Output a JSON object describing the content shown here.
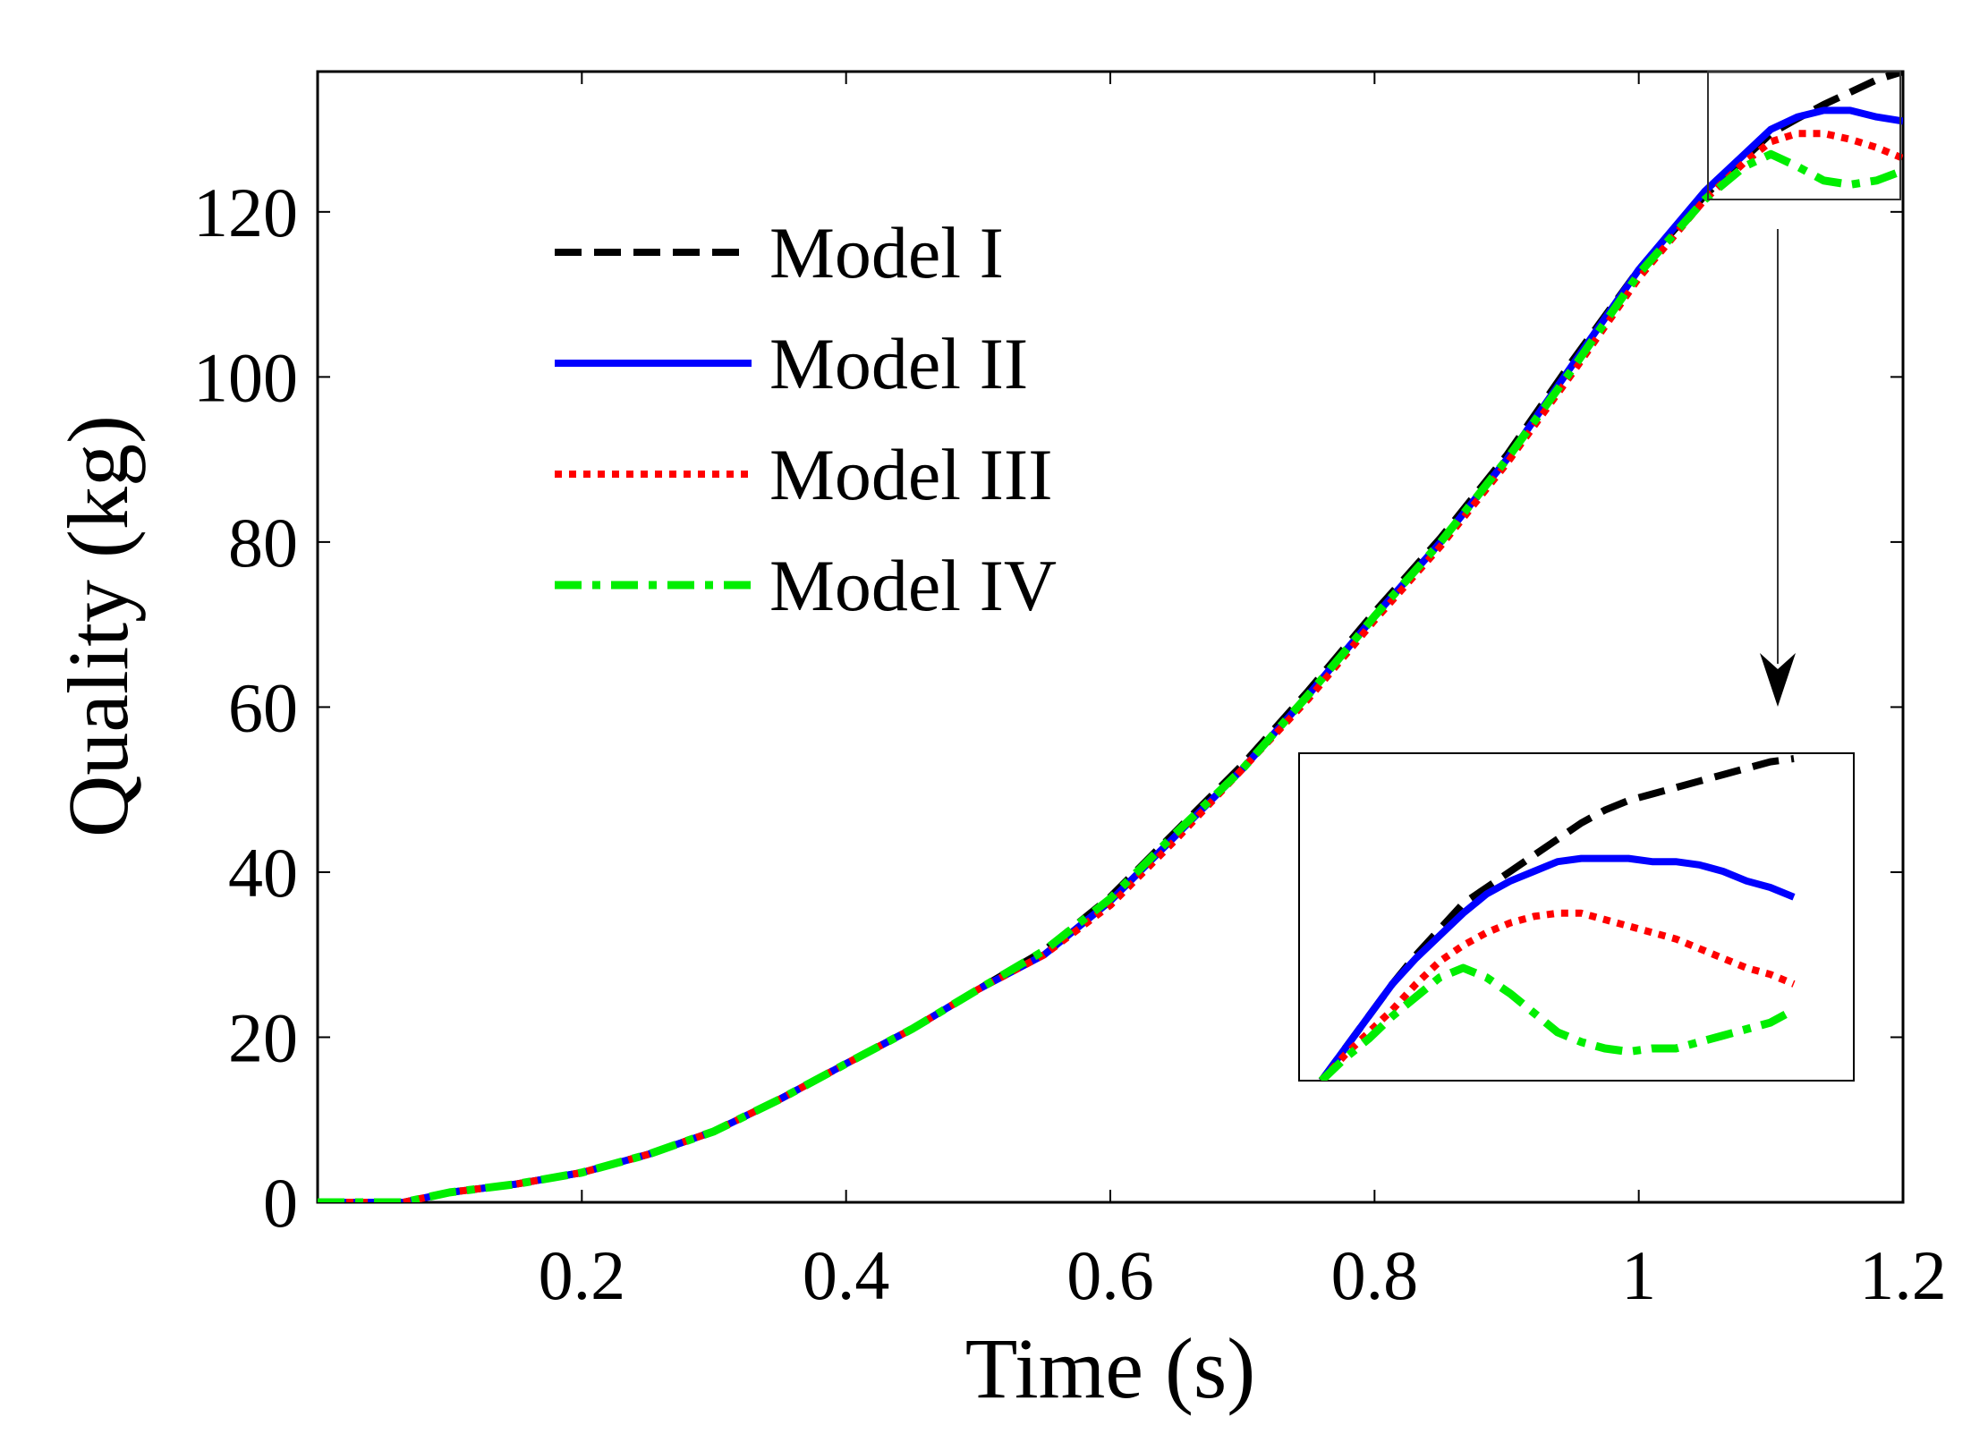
{
  "chart_data": {
    "type": "line",
    "title": "",
    "xlabel": "Time (s)",
    "ylabel": "Quality (kg)",
    "xlim": [
      0,
      1.2
    ],
    "ylim": [
      0,
      137
    ],
    "xticks": [
      0.2,
      0.4,
      0.6,
      0.8,
      1,
      1.2
    ],
    "xtick_labels": [
      "0.2",
      "0.4",
      "0.6",
      "0.8",
      "1",
      "1.2"
    ],
    "yticks": [
      0,
      20,
      40,
      60,
      80,
      100,
      120
    ],
    "ytick_labels": [
      "0",
      "20",
      "40",
      "60",
      "80",
      "100",
      "120"
    ],
    "grid": false,
    "legend_position": "top-left",
    "colors": {
      "model_1": "#000000",
      "model_2": "#0000ff",
      "model_3": "#ff0000",
      "model_4": "#00ee00"
    },
    "series": [
      {
        "name": "Model I",
        "style": "dashed",
        "x": [
          0,
          0.02,
          0.04,
          0.065,
          0.1,
          0.15,
          0.2,
          0.25,
          0.3,
          0.35,
          0.4,
          0.45,
          0.5,
          0.55,
          0.6,
          0.65,
          0.7,
          0.75,
          0.8,
          0.85,
          0.9,
          0.95,
          1.0,
          1.05,
          1.08,
          1.1,
          1.12,
          1.14,
          1.16,
          1.18,
          1.2
        ],
        "y": [
          0,
          0,
          0,
          0,
          1.2,
          2.2,
          3.6,
          5.8,
          8.6,
          12.5,
          16.8,
          21.0,
          25.8,
          30.5,
          37.0,
          45.0,
          53.0,
          62.0,
          71.5,
          80.5,
          90.5,
          102.0,
          113.0,
          122.0,
          126.5,
          129.5,
          131.3,
          133.0,
          134.5,
          136.0,
          137.0
        ]
      },
      {
        "name": "Model II",
        "style": "solid",
        "x": [
          0,
          0.02,
          0.04,
          0.065,
          0.1,
          0.15,
          0.2,
          0.25,
          0.3,
          0.35,
          0.4,
          0.45,
          0.5,
          0.55,
          0.6,
          0.65,
          0.7,
          0.75,
          0.8,
          0.85,
          0.9,
          0.95,
          1.0,
          1.05,
          1.08,
          1.1,
          1.12,
          1.14,
          1.16,
          1.18,
          1.2
        ],
        "y": [
          0,
          0,
          0,
          0,
          1.2,
          2.2,
          3.6,
          5.8,
          8.6,
          12.5,
          16.8,
          21.0,
          25.8,
          30.0,
          36.5,
          44.5,
          52.5,
          61.5,
          71.0,
          80.0,
          90.0,
          101.5,
          113.0,
          122.5,
          127.0,
          130.0,
          131.5,
          132.3,
          132.3,
          131.5,
          131.0
        ]
      },
      {
        "name": "Model III",
        "style": "dotted",
        "x": [
          0,
          0.02,
          0.04,
          0.065,
          0.1,
          0.15,
          0.2,
          0.25,
          0.3,
          0.35,
          0.4,
          0.45,
          0.5,
          0.55,
          0.6,
          0.65,
          0.7,
          0.75,
          0.8,
          0.85,
          0.9,
          0.95,
          1.0,
          1.05,
          1.08,
          1.1,
          1.12,
          1.14,
          1.16,
          1.18,
          1.2
        ],
        "y": [
          0,
          0,
          0,
          0,
          1.2,
          2.2,
          3.6,
          5.8,
          8.6,
          12.5,
          16.8,
          21.0,
          25.8,
          30.0,
          36.0,
          44.0,
          52.5,
          61.0,
          70.5,
          79.5,
          89.5,
          100.5,
          112.0,
          121.5,
          126.0,
          128.5,
          129.5,
          129.5,
          128.8,
          127.8,
          126.5
        ]
      },
      {
        "name": "Model IV",
        "style": "dashdot",
        "x": [
          0,
          0.02,
          0.04,
          0.065,
          0.1,
          0.15,
          0.2,
          0.25,
          0.3,
          0.35,
          0.4,
          0.45,
          0.5,
          0.55,
          0.6,
          0.65,
          0.7,
          0.75,
          0.8,
          0.85,
          0.9,
          0.95,
          1.0,
          1.05,
          1.08,
          1.1,
          1.12,
          1.14,
          1.16,
          1.18,
          1.2
        ],
        "y": [
          0,
          0,
          0,
          0,
          1.2,
          2.2,
          3.6,
          5.8,
          8.6,
          12.5,
          16.8,
          21.0,
          25.8,
          30.5,
          36.8,
          44.8,
          52.5,
          61.5,
          71.0,
          80.0,
          90.0,
          101.0,
          112.5,
          121.5,
          125.5,
          127.0,
          125.5,
          123.8,
          123.3,
          123.8,
          125.0
        ]
      }
    ],
    "zoom": {
      "x_range": [
        1.055,
        1.2
      ],
      "y_range": [
        121.5,
        137.5
      ],
      "inset_series": [
        {
          "name": "Model I",
          "t": [
            0,
            0.05,
            0.1,
            0.15,
            0.2,
            0.25,
            0.3,
            0.35,
            0.4,
            0.45,
            0.5,
            0.55,
            0.6,
            0.65,
            0.7,
            0.75,
            0.8,
            0.85,
            0.9,
            0.95,
            1.0
          ],
          "v": [
            0,
            0.1,
            0.2,
            0.3,
            0.39,
            0.47,
            0.55,
            0.6,
            0.65,
            0.7,
            0.75,
            0.8,
            0.84,
            0.87,
            0.89,
            0.91,
            0.93,
            0.95,
            0.97,
            0.99,
            1.0
          ]
        },
        {
          "name": "Model II",
          "t": [
            0,
            0.05,
            0.1,
            0.15,
            0.2,
            0.25,
            0.3,
            0.35,
            0.4,
            0.45,
            0.5,
            0.55,
            0.6,
            0.65,
            0.7,
            0.75,
            0.8,
            0.85,
            0.9,
            0.95,
            1.0
          ],
          "v": [
            0,
            0.1,
            0.2,
            0.3,
            0.38,
            0.45,
            0.52,
            0.58,
            0.62,
            0.65,
            0.68,
            0.69,
            0.69,
            0.69,
            0.68,
            0.68,
            0.67,
            0.65,
            0.62,
            0.6,
            0.57
          ]
        },
        {
          "name": "Model III",
          "t": [
            0,
            0.05,
            0.1,
            0.15,
            0.2,
            0.25,
            0.3,
            0.35,
            0.4,
            0.45,
            0.5,
            0.55,
            0.6,
            0.65,
            0.7,
            0.75,
            0.8,
            0.85,
            0.9,
            0.95,
            1.0
          ],
          "v": [
            0,
            0.08,
            0.15,
            0.22,
            0.3,
            0.37,
            0.42,
            0.46,
            0.49,
            0.51,
            0.52,
            0.52,
            0.5,
            0.48,
            0.46,
            0.44,
            0.41,
            0.38,
            0.35,
            0.33,
            0.3
          ]
        },
        {
          "name": "Model IV",
          "t": [
            0,
            0.05,
            0.1,
            0.15,
            0.2,
            0.25,
            0.3,
            0.35,
            0.4,
            0.45,
            0.5,
            0.55,
            0.6,
            0.65,
            0.7,
            0.75,
            0.8,
            0.85,
            0.9,
            0.95,
            1.0
          ],
          "v": [
            0,
            0.07,
            0.13,
            0.2,
            0.26,
            0.32,
            0.35,
            0.32,
            0.27,
            0.21,
            0.15,
            0.12,
            0.1,
            0.09,
            0.1,
            0.1,
            0.12,
            0.14,
            0.16,
            0.18,
            0.22
          ]
        }
      ]
    }
  }
}
